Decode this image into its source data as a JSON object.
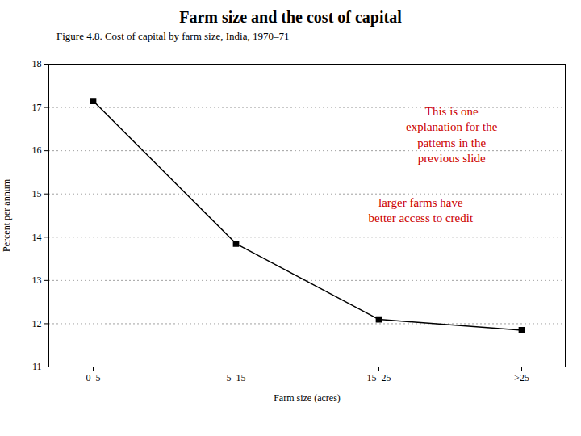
{
  "chart_data": {
    "type": "line",
    "title": "Farm size and the cost of capital",
    "subtitle": "Figure 4.8.    Cost of capital by farm size, India, 1970–71",
    "categories": [
      "0–5",
      "5–15",
      "15–25",
      ">25"
    ],
    "values": [
      17.15,
      13.85,
      12.1,
      11.85
    ],
    "color": "#000000",
    "marker": "square",
    "xlabel": "Farm size (acres)",
    "ylabel": "Percent per annum",
    "ylim": [
      11,
      18
    ],
    "yticks": [
      11,
      12,
      13,
      14,
      15,
      16,
      17,
      18
    ],
    "grid": true,
    "annotations": [
      {
        "text": "This is one\nexplanation for the\npatterns in the\nprevious slide",
        "color": "#cc0000"
      },
      {
        "text": "larger farms have\nbetter access to credit",
        "color": "#cc0000"
      }
    ]
  }
}
